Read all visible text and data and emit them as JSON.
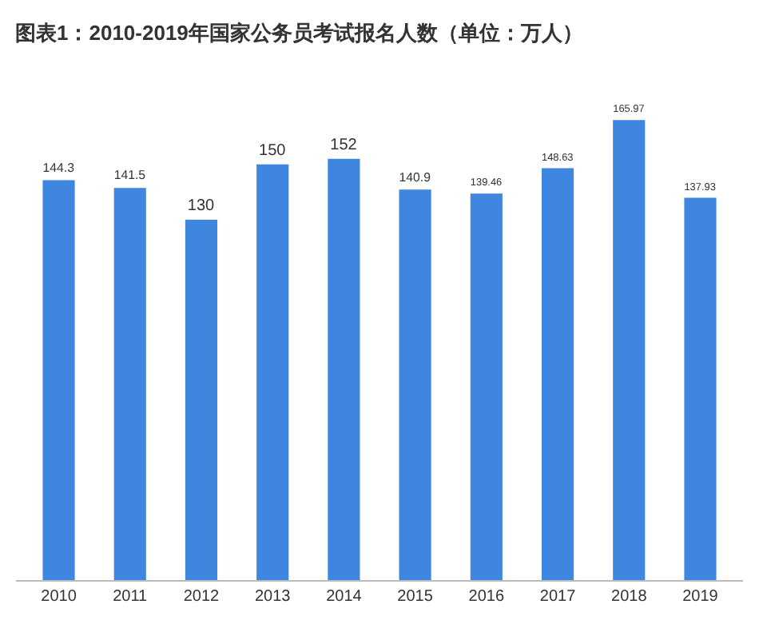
{
  "chart_data": {
    "type": "bar",
    "title": "图表1：2010-2019年国家公务员考试报名人数（单位：万人）",
    "categories": [
      "2010",
      "2011",
      "2012",
      "2013",
      "2014",
      "2015",
      "2016",
      "2017",
      "2018",
      "2019"
    ],
    "values": [
      144.3,
      141.5,
      130,
      150,
      152,
      140.9,
      139.46,
      148.63,
      165.97,
      137.93
    ],
    "color": "#3f86e0",
    "data_labels": true,
    "grid": false
  }
}
